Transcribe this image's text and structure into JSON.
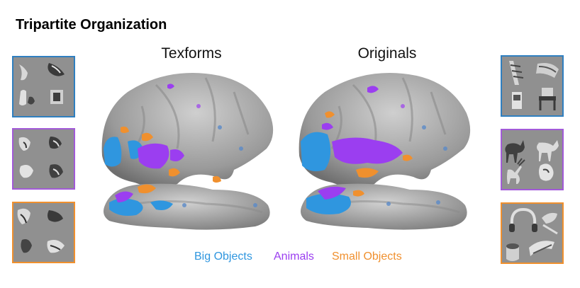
{
  "title": "Tripartite Organization",
  "panels": {
    "left": "Texforms",
    "right": "Originals"
  },
  "legend": [
    {
      "label": "Big Objects",
      "color": "#2f96df"
    },
    {
      "label": "Animals",
      "color": "#9b3ef0"
    },
    {
      "label": "Small Objects",
      "color": "#f0902e"
    }
  ],
  "colors": {
    "big_objects": "#2f96df",
    "animals": "#9b3ef0",
    "small_objects": "#f0902e"
  }
}
